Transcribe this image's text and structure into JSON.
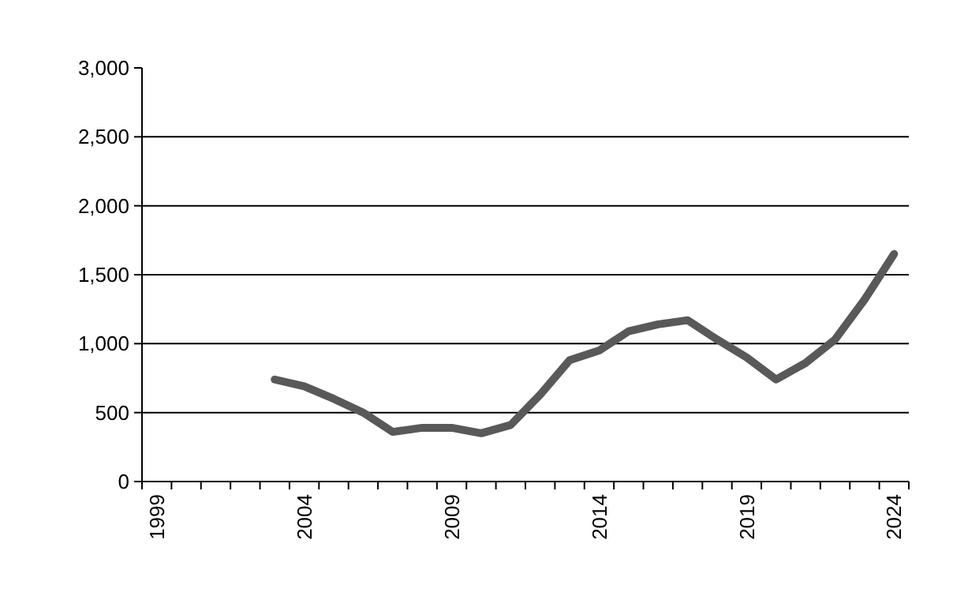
{
  "chart_data": {
    "type": "line",
    "categories": [
      "1999",
      null,
      null,
      null,
      null,
      "2004",
      null,
      null,
      null,
      null,
      "2009",
      null,
      null,
      null,
      null,
      "2014",
      null,
      null,
      null,
      null,
      "2019",
      null,
      null,
      null,
      null,
      "2024"
    ],
    "series": [
      {
        "color": "#595959",
        "values": [
          null,
          null,
          null,
          null,
          740,
          690,
          600,
          500,
          360,
          390,
          390,
          350,
          410,
          630,
          880,
          950,
          1090,
          1140,
          1170,
          1030,
          900,
          740,
          860,
          1030,
          1320,
          1650
        ]
      }
    ],
    "ylim": [
      0,
      3000
    ],
    "yticks": [
      {
        "value": 0,
        "label": "0"
      },
      {
        "value": 500,
        "label": "500"
      },
      {
        "value": 1000,
        "label": "1,000"
      },
      {
        "value": 1500,
        "label": "1,500"
      },
      {
        "value": 2000,
        "label": "2,000"
      },
      {
        "value": 2500,
        "label": "2,500"
      },
      {
        "value": 3000,
        "label": "3,000"
      }
    ],
    "grid": "y",
    "marker": "none",
    "line_style": "solid"
  }
}
